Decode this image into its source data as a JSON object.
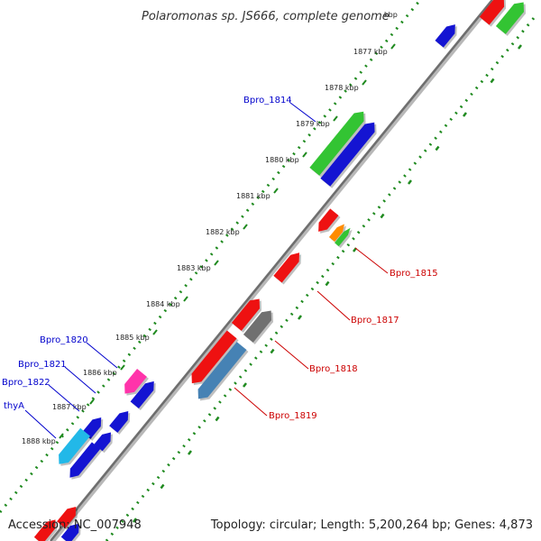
{
  "title": "Polaromonas sp. JS666, complete genome",
  "footer": {
    "accession": "Accession: NC_007948",
    "summary": "Topology: circular; Length: 5,200,264 bp; Genes: 4,873"
  },
  "colors": {
    "backbone": "#7a7a7a",
    "tick": "#1f8a1f",
    "label_plus": "#0000cc",
    "label_minus": "#cc0000"
  },
  "ticks": [
    "1877 kbp",
    "1878 kbp",
    "1879 kbp",
    "1880 kbp",
    "1881 kbp",
    "1882 kbp",
    "1883 kbp",
    "1884 kbp",
    "1885 kbp",
    "1886 kbp",
    "1887 kbp",
    "1888 kbp"
  ],
  "gene_labels_plus": [
    "Bpro_1814",
    "Bpro_1820",
    "Bpro_1821",
    "Bpro_1822",
    "thyA"
  ],
  "gene_labels_minus": [
    "Bpro_1815",
    "Bpro_1817",
    "Bpro_1818",
    "Bpro_1819"
  ],
  "gene_colors": {
    "blue": "#1414d2",
    "green": "#33c433",
    "red": "#ee1111",
    "orange": "#ff8c00",
    "pink": "#ff33aa",
    "cyan": "#22b8e8",
    "steelblue": "#4682b4",
    "gray": "#707070"
  }
}
